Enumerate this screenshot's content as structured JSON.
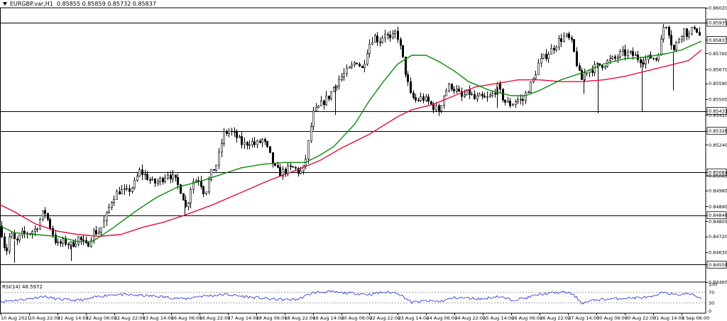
{
  "header": {
    "symbol": "EURGBP.var,H1",
    "ohlc": "0.85855 0.85859 0.85732 0.85837"
  },
  "rsi": {
    "label": "RSI(14) 48.5972",
    "levels": [
      100,
      70,
      30,
      0
    ],
    "color": "#1f2bd6"
  },
  "colors": {
    "candle": "#000000",
    "ma_fast": "#0c8a0c",
    "ma_slow": "#e0103c",
    "levels": "#000000",
    "price_tag_bg": "#ffffff"
  },
  "chart_data": {
    "type": "candlestick",
    "title": "EURGBP.var,H1",
    "ylim": [
      0.8446,
      0.8602
    ],
    "y_ticks": [
      "0.86020",
      "0.85935",
      "0.85837",
      "0.85760",
      "0.85670",
      "0.85590",
      "0.85500",
      "0.85433",
      "0.85410",
      "0.85320",
      "0.85240",
      "0.85084",
      "0.85065",
      "0.84980",
      "0.84890",
      "0.84840",
      "0.84805",
      "0.84720",
      "0.84630",
      "0.84559",
      "0.84460"
    ],
    "x_ticks": [
      "10 Aug 2021",
      "10 Aug 22:00",
      "11 Aug 14:00",
      "12 Aug 06:00",
      "12 Aug 22:00",
      "13 Aug 14:00",
      "16 Aug 06:00",
      "16 Aug 22:00",
      "17 Aug 14:00",
      "18 Aug 06:00",
      "18 Aug 22:00",
      "19 Aug 14:00",
      "20 Aug 06:00",
      "22 Aug 22:00",
      "23 Aug 14:00",
      "24 Aug 06:00",
      "24 Aug 22:00",
      "25 Aug 14:00",
      "26 Aug 06:00",
      "26 Aug 22:00",
      "27 Aug 14:00",
      "30 Aug 06:00",
      "30 Aug 22:00",
      "31 Aug 14:00",
      "1 Sep 06:00"
    ],
    "horizontal_levels": [
      0.85935,
      0.85433,
      0.8532,
      0.85084,
      0.8484,
      0.84559
    ],
    "current_price": 0.85837,
    "close_path": [
      [
        0,
        0.8478
      ],
      [
        8,
        0.8462
      ],
      [
        14,
        0.8474
      ],
      [
        22,
        0.8468
      ],
      [
        30,
        0.8473
      ],
      [
        40,
        0.8474
      ],
      [
        50,
        0.8476
      ],
      [
        62,
        0.8487
      ],
      [
        70,
        0.8478
      ],
      [
        80,
        0.8467
      ],
      [
        90,
        0.8469
      ],
      [
        100,
        0.8467
      ],
      [
        110,
        0.8471
      ],
      [
        122,
        0.8466
      ],
      [
        130,
        0.8474
      ],
      [
        140,
        0.8475
      ],
      [
        148,
        0.8482
      ],
      [
        158,
        0.8494
      ],
      [
        168,
        0.8498
      ],
      [
        178,
        0.8497
      ],
      [
        188,
        0.8501
      ],
      [
        196,
        0.8509
      ],
      [
        206,
        0.8506
      ],
      [
        216,
        0.8502
      ],
      [
        226,
        0.8504
      ],
      [
        236,
        0.8508
      ],
      [
        246,
        0.8504
      ],
      [
        256,
        0.8497
      ],
      [
        262,
        0.8487
      ],
      [
        270,
        0.8503
      ],
      [
        280,
        0.8505
      ],
      [
        288,
        0.8496
      ],
      [
        296,
        0.8507
      ],
      [
        306,
        0.8514
      ],
      [
        314,
        0.853
      ],
      [
        322,
        0.8532
      ],
      [
        332,
        0.8529
      ],
      [
        342,
        0.8524
      ],
      [
        352,
        0.8526
      ],
      [
        360,
        0.8524
      ],
      [
        370,
        0.8527
      ],
      [
        378,
        0.852
      ],
      [
        386,
        0.8511
      ],
      [
        394,
        0.8508
      ],
      [
        404,
        0.851
      ],
      [
        414,
        0.8511
      ],
      [
        422,
        0.8508
      ],
      [
        428,
        0.8511
      ],
      [
        432,
        0.852
      ],
      [
        436,
        0.853
      ],
      [
        440,
        0.8541
      ],
      [
        448,
        0.8545
      ],
      [
        456,
        0.8549
      ],
      [
        464,
        0.8552
      ],
      [
        474,
        0.856
      ],
      [
        484,
        0.8564
      ],
      [
        494,
        0.8568
      ],
      [
        502,
        0.8572
      ],
      [
        510,
        0.8567
      ],
      [
        518,
        0.858
      ],
      [
        526,
        0.8586
      ],
      [
        534,
        0.8583
      ],
      [
        542,
        0.8588
      ],
      [
        550,
        0.8583
      ],
      [
        558,
        0.8589
      ],
      [
        566,
        0.8575
      ],
      [
        572,
        0.8563
      ],
      [
        578,
        0.8552
      ],
      [
        586,
        0.8549
      ],
      [
        594,
        0.8551
      ],
      [
        604,
        0.8548
      ],
      [
        612,
        0.8545
      ],
      [
        618,
        0.8544
      ],
      [
        626,
        0.8554
      ],
      [
        634,
        0.8558
      ],
      [
        642,
        0.8555
      ],
      [
        650,
        0.8551
      ],
      [
        660,
        0.8554
      ],
      [
        668,
        0.855
      ],
      [
        676,
        0.8551
      ],
      [
        684,
        0.855
      ],
      [
        692,
        0.8552
      ],
      [
        700,
        0.8557
      ],
      [
        706,
        0.8552
      ],
      [
        712,
        0.8548
      ],
      [
        720,
        0.8547
      ],
      [
        728,
        0.855
      ],
      [
        736,
        0.8549
      ],
      [
        742,
        0.8555
      ],
      [
        750,
        0.856
      ],
      [
        758,
        0.857
      ],
      [
        766,
        0.8574
      ],
      [
        776,
        0.8578
      ],
      [
        786,
        0.8583
      ],
      [
        796,
        0.8586
      ],
      [
        804,
        0.8583
      ],
      [
        810,
        0.8574
      ],
      [
        818,
        0.856
      ],
      [
        824,
        0.8566
      ],
      [
        832,
        0.8567
      ],
      [
        842,
        0.8569
      ],
      [
        850,
        0.857
      ],
      [
        858,
        0.8572
      ],
      [
        866,
        0.8573
      ],
      [
        874,
        0.8576
      ],
      [
        882,
        0.8576
      ],
      [
        892,
        0.8575
      ],
      [
        900,
        0.8573
      ],
      [
        908,
        0.8572
      ],
      [
        916,
        0.8574
      ],
      [
        924,
        0.8573
      ],
      [
        930,
        0.8581
      ],
      [
        936,
        0.8595
      ],
      [
        942,
        0.8588
      ],
      [
        948,
        0.8577
      ],
      [
        954,
        0.8583
      ],
      [
        962,
        0.859
      ],
      [
        970,
        0.8586
      ],
      [
        978,
        0.8592
      ],
      [
        984,
        0.8587
      ],
      [
        988,
        0.85837
      ]
    ],
    "spikes": [
      [
        20,
        0.8457
      ],
      [
        100,
        0.8458
      ],
      [
        260,
        0.8484
      ],
      [
        472,
        0.8541
      ],
      [
        618,
        0.85405
      ],
      [
        700,
        0.8545
      ],
      [
        822,
        0.8553
      ],
      [
        842,
        0.8542
      ],
      [
        904,
        0.8543
      ],
      [
        948,
        0.8555
      ]
    ],
    "ma_fast_path": [
      [
        0,
        0.8478
      ],
      [
        20,
        0.8474
      ],
      [
        50,
        0.8473
      ],
      [
        80,
        0.8472
      ],
      [
        110,
        0.8469
      ],
      [
        130,
        0.8469
      ],
      [
        160,
        0.8477
      ],
      [
        190,
        0.8486
      ],
      [
        220,
        0.8494
      ],
      [
        250,
        0.85
      ],
      [
        280,
        0.8503
      ],
      [
        310,
        0.8507
      ],
      [
        340,
        0.8511
      ],
      [
        370,
        0.8513
      ],
      [
        400,
        0.8514
      ],
      [
        430,
        0.8514
      ],
      [
        450,
        0.8518
      ],
      [
        470,
        0.8523
      ],
      [
        500,
        0.8536
      ],
      [
        520,
        0.8549
      ],
      [
        540,
        0.856
      ],
      [
        560,
        0.857
      ],
      [
        580,
        0.8575
      ],
      [
        600,
        0.8575
      ],
      [
        620,
        0.8571
      ],
      [
        640,
        0.8566
      ],
      [
        660,
        0.856
      ],
      [
        690,
        0.8555
      ],
      [
        720,
        0.8552
      ],
      [
        740,
        0.8552
      ],
      [
        760,
        0.8555
      ],
      [
        790,
        0.8561
      ],
      [
        820,
        0.8565
      ],
      [
        850,
        0.857
      ],
      [
        880,
        0.8573
      ],
      [
        910,
        0.8574
      ],
      [
        940,
        0.8576
      ],
      [
        960,
        0.8578
      ],
      [
        988,
        0.8583
      ]
    ],
    "ma_slow_path": [
      [
        0,
        0.849
      ],
      [
        20,
        0.8486
      ],
      [
        50,
        0.8479
      ],
      [
        80,
        0.8475
      ],
      [
        110,
        0.8473
      ],
      [
        140,
        0.8472
      ],
      [
        170,
        0.8473
      ],
      [
        200,
        0.8477
      ],
      [
        230,
        0.848
      ],
      [
        260,
        0.8484
      ],
      [
        300,
        0.849
      ],
      [
        340,
        0.8497
      ],
      [
        380,
        0.8504
      ],
      [
        420,
        0.851
      ],
      [
        450,
        0.8515
      ],
      [
        480,
        0.8522
      ],
      [
        520,
        0.853
      ],
      [
        560,
        0.854
      ],
      [
        580,
        0.8544
      ],
      [
        610,
        0.8547
      ],
      [
        640,
        0.8552
      ],
      [
        670,
        0.8557
      ],
      [
        700,
        0.8559
      ],
      [
        730,
        0.8561
      ],
      [
        760,
        0.8561
      ],
      [
        790,
        0.856
      ],
      [
        820,
        0.856
      ],
      [
        850,
        0.8561
      ],
      [
        880,
        0.8563
      ],
      [
        910,
        0.8566
      ],
      [
        940,
        0.8569
      ],
      [
        970,
        0.8572
      ],
      [
        988,
        0.8578
      ]
    ],
    "rsi_path": [
      [
        0,
        35
      ],
      [
        20,
        40
      ],
      [
        40,
        45
      ],
      [
        60,
        55
      ],
      [
        80,
        45
      ],
      [
        100,
        40
      ],
      [
        120,
        42
      ],
      [
        140,
        55
      ],
      [
        160,
        62
      ],
      [
        180,
        60
      ],
      [
        200,
        58
      ],
      [
        220,
        55
      ],
      [
        240,
        50
      ],
      [
        260,
        45
      ],
      [
        280,
        55
      ],
      [
        300,
        58
      ],
      [
        320,
        62
      ],
      [
        340,
        55
      ],
      [
        360,
        50
      ],
      [
        380,
        45
      ],
      [
        400,
        42
      ],
      [
        420,
        44
      ],
      [
        440,
        68
      ],
      [
        460,
        72
      ],
      [
        480,
        68
      ],
      [
        500,
        66
      ],
      [
        520,
        62
      ],
      [
        540,
        70
      ],
      [
        560,
        68
      ],
      [
        570,
        50
      ],
      [
        580,
        32
      ],
      [
        600,
        38
      ],
      [
        620,
        36
      ],
      [
        640,
        50
      ],
      [
        660,
        48
      ],
      [
        680,
        45
      ],
      [
        700,
        55
      ],
      [
        720,
        42
      ],
      [
        740,
        48
      ],
      [
        760,
        62
      ],
      [
        780,
        68
      ],
      [
        800,
        70
      ],
      [
        810,
        55
      ],
      [
        820,
        30
      ],
      [
        840,
        42
      ],
      [
        860,
        45
      ],
      [
        880,
        48
      ],
      [
        900,
        50
      ],
      [
        920,
        52
      ],
      [
        936,
        72
      ],
      [
        950,
        60
      ],
      [
        970,
        65
      ],
      [
        988,
        48
      ]
    ]
  }
}
